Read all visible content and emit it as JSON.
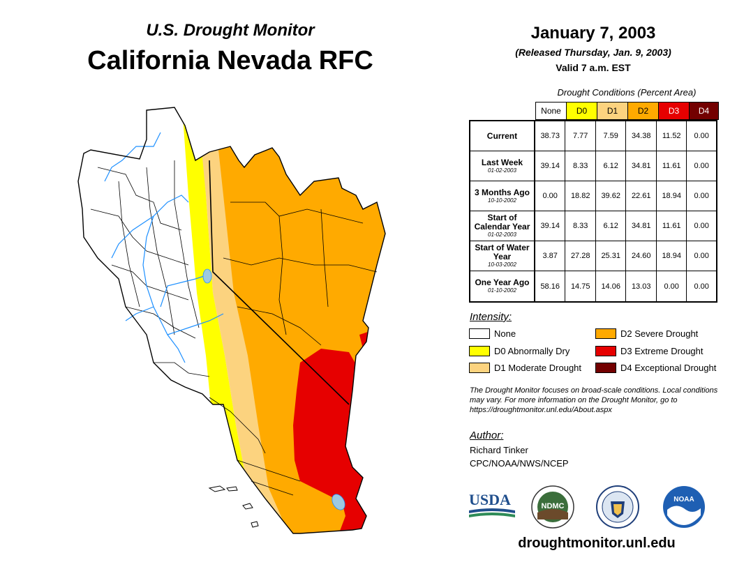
{
  "header": {
    "subtitle": "U.S. Drought Monitor",
    "region": "California Nevada RFC",
    "date": "January 7, 2003",
    "released": "(Released Thursday, Jan. 9, 2003)",
    "valid": "Valid 7 a.m. EST"
  },
  "table": {
    "caption": "Drought Conditions (Percent Area)",
    "columns": [
      {
        "label": "None",
        "color": "#ffffff"
      },
      {
        "label": "D0",
        "color": "#ffff00"
      },
      {
        "label": "D1",
        "color": "#fcd37f"
      },
      {
        "label": "D2",
        "color": "#ffaa00"
      },
      {
        "label": "D3",
        "color": "#e60000"
      },
      {
        "label": "D4",
        "color": "#730000"
      }
    ],
    "rows": [
      {
        "label": "Current",
        "date": "",
        "values": [
          "38.73",
          "7.77",
          "7.59",
          "34.38",
          "11.52",
          "0.00"
        ]
      },
      {
        "label": "Last Week",
        "date": "01-02-2003",
        "values": [
          "39.14",
          "8.33",
          "6.12",
          "34.81",
          "11.61",
          "0.00"
        ]
      },
      {
        "label": "3 Months Ago",
        "date": "10-10-2002",
        "values": [
          "0.00",
          "18.82",
          "39.62",
          "22.61",
          "18.94",
          "0.00"
        ]
      },
      {
        "label": "Start of Calendar Year",
        "date": "01-02-2003",
        "values": [
          "39.14",
          "8.33",
          "6.12",
          "34.81",
          "11.61",
          "0.00"
        ]
      },
      {
        "label": "Start of Water Year",
        "date": "10-03-2002",
        "values": [
          "3.87",
          "27.28",
          "25.31",
          "24.60",
          "18.94",
          "0.00"
        ]
      },
      {
        "label": "One Year Ago",
        "date": "01-10-2002",
        "values": [
          "58.16",
          "14.75",
          "14.06",
          "13.03",
          "0.00",
          "0.00"
        ]
      }
    ]
  },
  "legend": {
    "title": "Intensity:",
    "items": [
      {
        "label": "None",
        "color": "#ffffff"
      },
      {
        "label": "D0 Abnormally Dry",
        "color": "#ffff00"
      },
      {
        "label": "D1 Moderate Drought",
        "color": "#fcd37f"
      },
      {
        "label": "D2 Severe Drought",
        "color": "#ffaa00"
      },
      {
        "label": "D3 Extreme Drought",
        "color": "#e60000"
      },
      {
        "label": "D4 Exceptional Drought",
        "color": "#730000"
      }
    ]
  },
  "note": "The Drought Monitor focuses on broad-scale conditions. Local conditions may vary. For more information on the Drought Monitor, go to https://droughtmonitor.unl.edu/About.aspx",
  "author": {
    "title": "Author:",
    "name": "Richard Tinker",
    "org": "CPC/NOAA/NWS/NCEP"
  },
  "logos": [
    {
      "text": "USDA",
      "icon": "usda-logo"
    },
    {
      "text": "NDMC",
      "icon": "ndmc-logo"
    },
    {
      "text": "",
      "icon": "doc-seal-logo"
    },
    {
      "text": "NOAA",
      "icon": "noaa-logo"
    }
  ],
  "website": "droughtmonitor.unl.edu",
  "colors": {
    "river": "#1e90ff",
    "lake": "#9ecae1",
    "d0": "#ffff00",
    "d1": "#fcd37f",
    "d2": "#ffaa00",
    "d3": "#e60000"
  }
}
